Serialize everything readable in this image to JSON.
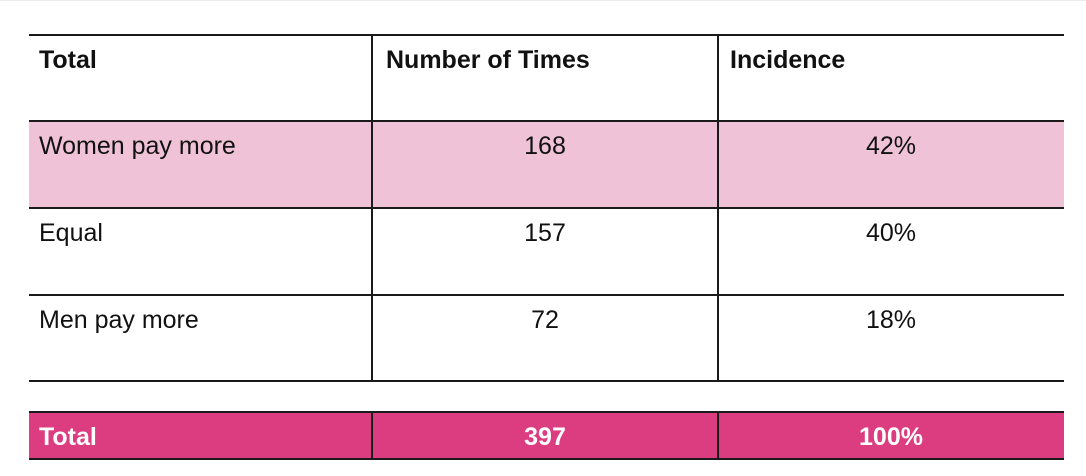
{
  "table": {
    "header": [
      "Total",
      "Number of Times",
      "Incidence"
    ],
    "rows": [
      {
        "label": "Women pay more",
        "count": "168",
        "incidence": "42%"
      },
      {
        "label": "Equal",
        "count": "157",
        "incidence": "40%"
      },
      {
        "label": "Men pay more",
        "count": "72",
        "incidence": "18%"
      }
    ],
    "total": {
      "label": "Total",
      "count": "397",
      "incidence": "100%"
    }
  },
  "colors": {
    "highlight_row": "#f0c2d8",
    "total_row": "#dc3d80",
    "total_text": "#ffffff",
    "rule": "#1a1a1a"
  },
  "chart_data": {
    "type": "table",
    "columns": [
      "Total",
      "Number of Times",
      "Incidence"
    ],
    "rows": [
      [
        "Women pay more",
        168,
        "42%"
      ],
      [
        "Equal",
        157,
        "40%"
      ],
      [
        "Men pay more",
        72,
        "18%"
      ],
      [
        "Total",
        397,
        "100%"
      ]
    ]
  }
}
